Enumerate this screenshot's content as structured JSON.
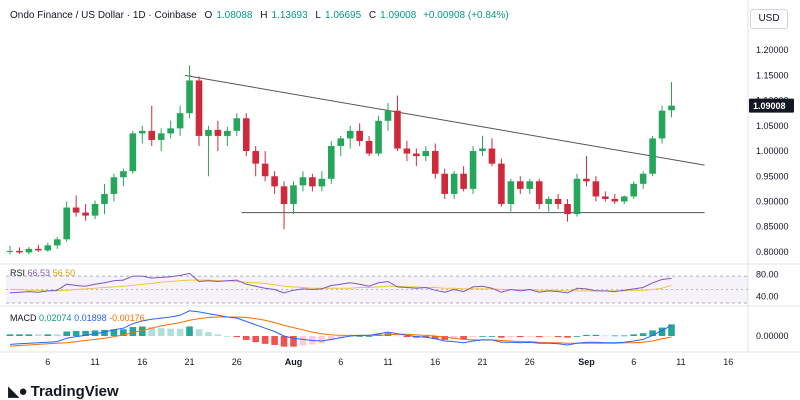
{
  "legend": {
    "symbol": "Ondo Finance / US Dollar · 1D · Coinbase",
    "open_label": "O",
    "open": "1.08088",
    "high_label": "H",
    "high": "1.13693",
    "low_label": "L",
    "low": "1.06695",
    "close_label": "C",
    "close": "1.09008",
    "change": "+0.00908 (+0.84%)"
  },
  "currency": "USD",
  "last_price": "1.09008",
  "brand": "TradingView",
  "rsi": {
    "label": "RSI",
    "value": "66.53",
    "ma": "56.50",
    "levels": [
      "80.00",
      "40.00"
    ]
  },
  "macd": {
    "label": "MACD",
    "histogram": "0.02074",
    "macd": "0.01898",
    "signal": "-0.00176",
    "level": "0.00000"
  },
  "colors": {
    "up": "#26a65b",
    "down": "#cf2a3b",
    "rsi": "#7e57c2",
    "rsi_ma": "#f5c242",
    "macd": "#2962ff",
    "signal": "#ff6d00"
  },
  "chart_data": {
    "type": "candlestick",
    "price_axis": {
      "ylim": [
        0.78,
        1.24
      ],
      "ticks": [
        "1.20000",
        "1.15000",
        "1.10000",
        "1.05000",
        "1.00000",
        "0.95000",
        "0.90000",
        "0.85000",
        "0.80000"
      ]
    },
    "x_ticks": [
      {
        "label": "6",
        "i": 4
      },
      {
        "label": "11",
        "i": 9
      },
      {
        "label": "16",
        "i": 14
      },
      {
        "label": "21",
        "i": 19
      },
      {
        "label": "26",
        "i": 24
      },
      {
        "label": "Aug",
        "i": 30
      },
      {
        "label": "6",
        "i": 35
      },
      {
        "label": "11",
        "i": 40
      },
      {
        "label": "16",
        "i": 45
      },
      {
        "label": "21",
        "i": 50
      },
      {
        "label": "26",
        "i": 55
      },
      {
        "label": "Sep",
        "i": 61
      },
      {
        "label": "6",
        "i": 66
      },
      {
        "label": "11",
        "i": 71
      },
      {
        "label": "16",
        "i": 76
      }
    ],
    "candles": [
      {
        "o": 0.8,
        "h": 0.812,
        "l": 0.795,
        "c": 0.802
      },
      {
        "o": 0.802,
        "h": 0.809,
        "l": 0.796,
        "c": 0.799
      },
      {
        "o": 0.799,
        "h": 0.81,
        "l": 0.795,
        "c": 0.806
      },
      {
        "o": 0.806,
        "h": 0.814,
        "l": 0.8,
        "c": 0.803
      },
      {
        "o": 0.803,
        "h": 0.818,
        "l": 0.8,
        "c": 0.813
      },
      {
        "o": 0.813,
        "h": 0.83,
        "l": 0.806,
        "c": 0.825
      },
      {
        "o": 0.825,
        "h": 0.9,
        "l": 0.82,
        "c": 0.888
      },
      {
        "o": 0.888,
        "h": 0.912,
        "l": 0.87,
        "c": 0.878
      },
      {
        "o": 0.878,
        "h": 0.895,
        "l": 0.862,
        "c": 0.872
      },
      {
        "o": 0.872,
        "h": 0.902,
        "l": 0.865,
        "c": 0.895
      },
      {
        "o": 0.895,
        "h": 0.935,
        "l": 0.875,
        "c": 0.915
      },
      {
        "o": 0.915,
        "h": 0.955,
        "l": 0.9,
        "c": 0.948
      },
      {
        "o": 0.948,
        "h": 0.965,
        "l": 0.93,
        "c": 0.96
      },
      {
        "o": 0.96,
        "h": 1.04,
        "l": 0.955,
        "c": 1.035
      },
      {
        "o": 1.035,
        "h": 1.05,
        "l": 1.015,
        "c": 1.04
      },
      {
        "o": 1.04,
        "h": 1.09,
        "l": 1.01,
        "c": 1.022
      },
      {
        "o": 1.022,
        "h": 1.045,
        "l": 1.0,
        "c": 1.035
      },
      {
        "o": 1.035,
        "h": 1.06,
        "l": 1.025,
        "c": 1.045
      },
      {
        "o": 1.045,
        "h": 1.09,
        "l": 1.03,
        "c": 1.075
      },
      {
        "o": 1.075,
        "h": 1.17,
        "l": 1.065,
        "c": 1.14
      },
      {
        "o": 1.14,
        "h": 1.148,
        "l": 1.01,
        "c": 1.03
      },
      {
        "o": 1.03,
        "h": 1.05,
        "l": 0.95,
        "c": 1.042
      },
      {
        "o": 1.042,
        "h": 1.06,
        "l": 1.0,
        "c": 1.03
      },
      {
        "o": 1.03,
        "h": 1.048,
        "l": 1.01,
        "c": 1.04
      },
      {
        "o": 1.04,
        "h": 1.075,
        "l": 1.03,
        "c": 1.065
      },
      {
        "o": 1.065,
        "h": 1.075,
        "l": 0.99,
        "c": 1.0
      },
      {
        "o": 1.0,
        "h": 1.01,
        "l": 0.95,
        "c": 0.975
      },
      {
        "o": 0.975,
        "h": 1.0,
        "l": 0.94,
        "c": 0.95
      },
      {
        "o": 0.95,
        "h": 0.96,
        "l": 0.915,
        "c": 0.93
      },
      {
        "o": 0.93,
        "h": 0.94,
        "l": 0.845,
        "c": 0.895
      },
      {
        "o": 0.895,
        "h": 0.94,
        "l": 0.875,
        "c": 0.932
      },
      {
        "o": 0.932,
        "h": 0.96,
        "l": 0.92,
        "c": 0.948
      },
      {
        "o": 0.948,
        "h": 0.955,
        "l": 0.92,
        "c": 0.93
      },
      {
        "o": 0.93,
        "h": 0.96,
        "l": 0.92,
        "c": 0.945
      },
      {
        "o": 0.945,
        "h": 1.02,
        "l": 0.935,
        "c": 1.01
      },
      {
        "o": 1.01,
        "h": 1.03,
        "l": 0.99,
        "c": 1.025
      },
      {
        "o": 1.025,
        "h": 1.05,
        "l": 1.005,
        "c": 1.04
      },
      {
        "o": 1.04,
        "h": 1.055,
        "l": 1.01,
        "c": 1.02
      },
      {
        "o": 1.02,
        "h": 1.03,
        "l": 0.99,
        "c": 0.995
      },
      {
        "o": 0.995,
        "h": 1.07,
        "l": 0.99,
        "c": 1.06
      },
      {
        "o": 1.06,
        "h": 1.095,
        "l": 1.04,
        "c": 1.08
      },
      {
        "o": 1.08,
        "h": 1.11,
        "l": 1.0,
        "c": 1.005
      },
      {
        "o": 1.005,
        "h": 1.02,
        "l": 0.98,
        "c": 0.995
      },
      {
        "o": 0.995,
        "h": 1.005,
        "l": 0.97,
        "c": 0.99
      },
      {
        "o": 0.99,
        "h": 1.01,
        "l": 0.98,
        "c": 1.0
      },
      {
        "o": 1.0,
        "h": 1.015,
        "l": 0.945,
        "c": 0.955
      },
      {
        "o": 0.955,
        "h": 0.965,
        "l": 0.905,
        "c": 0.915
      },
      {
        "o": 0.915,
        "h": 0.96,
        "l": 0.905,
        "c": 0.955
      },
      {
        "o": 0.955,
        "h": 0.97,
        "l": 0.92,
        "c": 0.925
      },
      {
        "o": 0.925,
        "h": 1.01,
        "l": 0.915,
        "c": 1.0
      },
      {
        "o": 1.0,
        "h": 1.03,
        "l": 0.99,
        "c": 1.005
      },
      {
        "o": 1.005,
        "h": 1.025,
        "l": 0.97,
        "c": 0.975
      },
      {
        "o": 0.975,
        "h": 0.985,
        "l": 0.89,
        "c": 0.895
      },
      {
        "o": 0.895,
        "h": 0.945,
        "l": 0.88,
        "c": 0.94
      },
      {
        "o": 0.94,
        "h": 0.95,
        "l": 0.915,
        "c": 0.925
      },
      {
        "o": 0.925,
        "h": 0.945,
        "l": 0.915,
        "c": 0.94
      },
      {
        "o": 0.94,
        "h": 0.945,
        "l": 0.885,
        "c": 0.895
      },
      {
        "o": 0.895,
        "h": 0.91,
        "l": 0.88,
        "c": 0.905
      },
      {
        "o": 0.905,
        "h": 0.915,
        "l": 0.885,
        "c": 0.895
      },
      {
        "o": 0.895,
        "h": 0.905,
        "l": 0.86,
        "c": 0.875
      },
      {
        "o": 0.875,
        "h": 0.955,
        "l": 0.87,
        "c": 0.945
      },
      {
        "o": 0.945,
        "h": 0.99,
        "l": 0.93,
        "c": 0.94
      },
      {
        "o": 0.94,
        "h": 0.95,
        "l": 0.9,
        "c": 0.91
      },
      {
        "o": 0.91,
        "h": 0.92,
        "l": 0.9,
        "c": 0.905
      },
      {
        "o": 0.905,
        "h": 0.915,
        "l": 0.895,
        "c": 0.9
      },
      {
        "o": 0.9,
        "h": 0.912,
        "l": 0.895,
        "c": 0.91
      },
      {
        "o": 0.91,
        "h": 0.94,
        "l": 0.905,
        "c": 0.935
      },
      {
        "o": 0.935,
        "h": 0.96,
        "l": 0.925,
        "c": 0.955
      },
      {
        "o": 0.955,
        "h": 1.03,
        "l": 0.95,
        "c": 1.025
      },
      {
        "o": 1.025,
        "h": 1.09,
        "l": 1.015,
        "c": 1.08
      },
      {
        "o": 1.08088,
        "h": 1.13693,
        "l": 1.06695,
        "c": 1.09008
      }
    ],
    "trendlines": [
      {
        "name": "descending-resistance",
        "from": {
          "i": 18.5,
          "y": 1.15
        },
        "to": {
          "i": 73.5,
          "y": 0.972
        }
      },
      {
        "name": "horizontal-support",
        "from": {
          "i": 24.5,
          "y": 0.878
        },
        "to": {
          "i": 73.5,
          "y": 0.878
        }
      }
    ],
    "rsi_series": [
      45,
      46,
      47,
      46,
      48,
      49,
      58,
      56,
      55,
      58,
      60,
      63,
      64,
      70,
      70,
      67,
      68,
      69,
      71,
      74,
      62,
      63,
      62,
      63,
      64,
      58,
      55,
      52,
      50,
      45,
      49,
      51,
      50,
      51,
      56,
      58,
      60,
      58,
      55,
      60,
      62,
      54,
      53,
      52,
      53,
      49,
      46,
      50,
      47,
      54,
      55,
      52,
      46,
      50,
      48,
      50,
      46,
      48,
      47,
      45,
      52,
      51,
      48,
      48,
      47,
      49,
      51,
      53,
      60,
      65,
      66.53
    ],
    "rsi_ma_series": [
      50,
      50,
      49,
      49,
      48,
      48,
      49,
      50,
      51,
      52,
      53,
      54,
      55,
      56,
      58,
      59,
      61,
      62,
      63,
      64,
      64,
      64,
      63,
      63,
      62,
      61,
      60,
      59,
      57,
      55,
      54,
      53,
      52,
      52,
      52,
      52,
      52,
      53,
      53,
      54,
      55,
      55,
      54,
      54,
      53,
      53,
      52,
      52,
      51,
      51,
      51,
      51,
      50,
      50,
      50,
      50,
      49,
      49,
      49,
      48,
      48,
      48,
      48,
      48,
      48,
      48,
      49,
      49,
      50,
      52,
      56.5
    ],
    "macd_series": [
      -0.015,
      -0.014,
      -0.013,
      -0.012,
      -0.011,
      -0.01,
      -0.004,
      -0.001,
      0.001,
      0.004,
      0.007,
      0.011,
      0.014,
      0.022,
      0.027,
      0.03,
      0.032,
      0.034,
      0.037,
      0.045,
      0.043,
      0.04,
      0.037,
      0.034,
      0.032,
      0.026,
      0.02,
      0.014,
      0.008,
      0.0,
      -0.004,
      -0.006,
      -0.008,
      -0.009,
      -0.006,
      -0.003,
      0.0,
      0.001,
      0.001,
      0.004,
      0.007,
      0.004,
      0.001,
      -0.001,
      -0.002,
      -0.005,
      -0.009,
      -0.01,
      -0.012,
      -0.009,
      -0.007,
      -0.007,
      -0.011,
      -0.011,
      -0.012,
      -0.011,
      -0.013,
      -0.013,
      -0.014,
      -0.016,
      -0.013,
      -0.011,
      -0.011,
      -0.012,
      -0.012,
      -0.011,
      -0.009,
      -0.006,
      0.001,
      0.01,
      0.01898
    ],
    "signal_series": [
      -0.018,
      -0.017,
      -0.016,
      -0.015,
      -0.014,
      -0.013,
      -0.012,
      -0.01,
      -0.008,
      -0.006,
      -0.004,
      -0.001,
      0.002,
      0.006,
      0.01,
      0.014,
      0.018,
      0.021,
      0.024,
      0.028,
      0.031,
      0.033,
      0.034,
      0.034,
      0.034,
      0.033,
      0.031,
      0.028,
      0.024,
      0.019,
      0.015,
      0.011,
      0.007,
      0.004,
      0.002,
      0.001,
      0.001,
      0.001,
      0.001,
      0.001,
      0.002,
      0.003,
      0.003,
      0.002,
      0.001,
      0.0,
      -0.002,
      -0.004,
      -0.006,
      -0.007,
      -0.007,
      -0.007,
      -0.008,
      -0.009,
      -0.01,
      -0.01,
      -0.011,
      -0.012,
      -0.012,
      -0.013,
      -0.013,
      -0.013,
      -0.013,
      -0.013,
      -0.013,
      -0.012,
      -0.012,
      -0.011,
      -0.009,
      -0.005,
      -0.00176
    ],
    "macd_ylim": [
      -0.025,
      0.05
    ]
  }
}
